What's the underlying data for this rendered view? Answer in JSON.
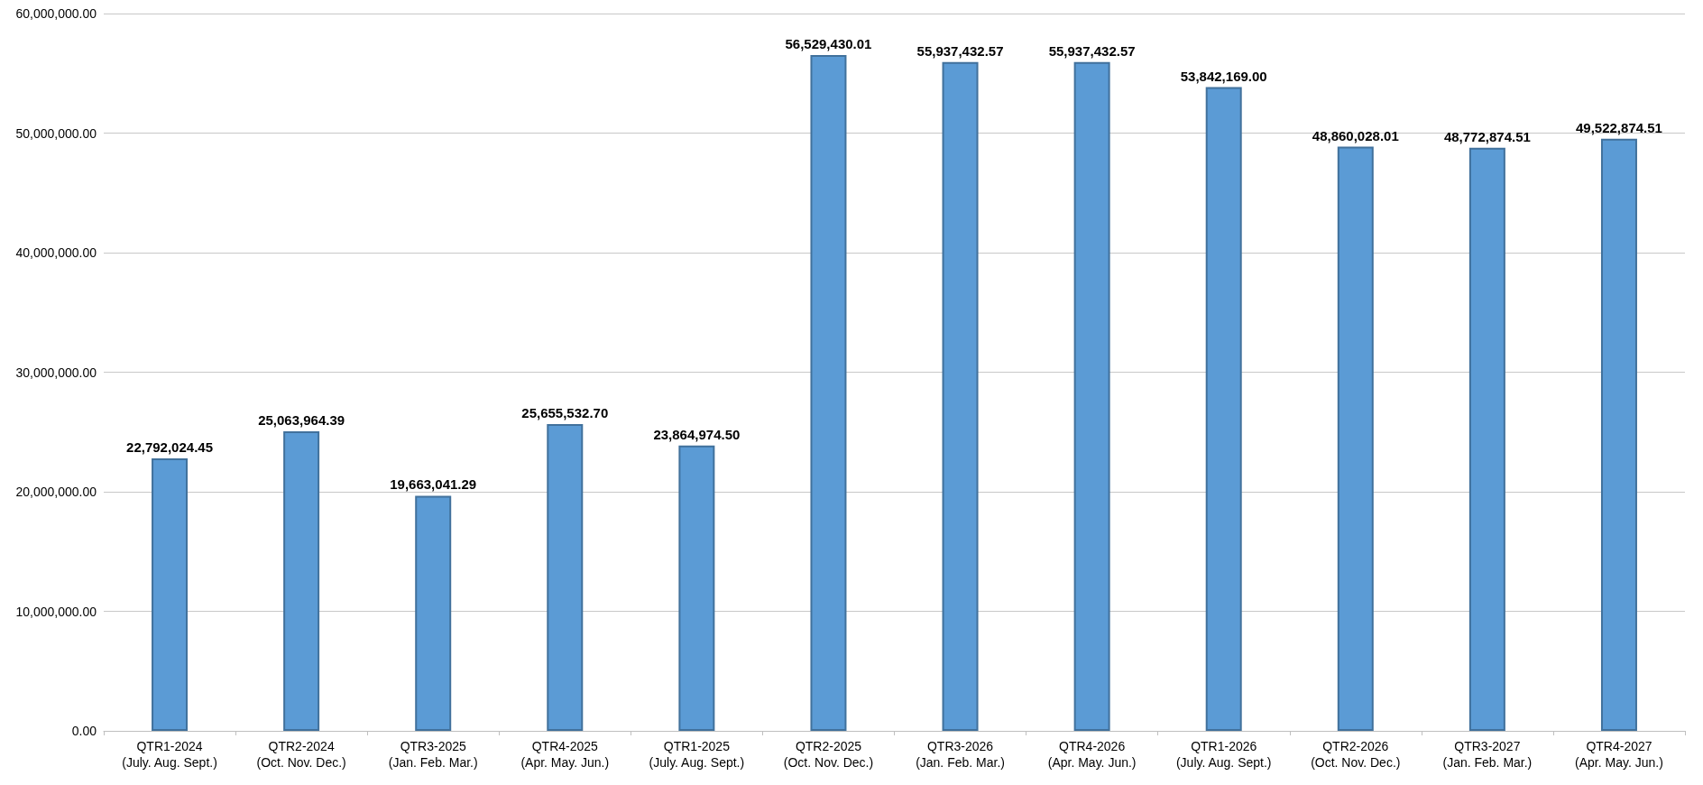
{
  "chart_data": {
    "type": "bar",
    "categories": [
      "QTR1-2024\n(July. Aug. Sept.)",
      "QTR2-2024\n(Oct. Nov. Dec.)",
      "QTR3-2025\n(Jan. Feb. Mar.)",
      "QTR4-2025\n(Apr. May. Jun.)",
      "QTR1-2025\n(July. Aug. Sept.)",
      "QTR2-2025\n(Oct. Nov. Dec.)",
      "QTR3-2026\n(Jan. Feb. Mar.)",
      "QTR4-2026\n(Apr. May. Jun.)",
      "QTR1-2026\n(July. Aug. Sept.)",
      "QTR2-2026\n(Oct. Nov. Dec.)",
      "QTR3-2027\n(Jan. Feb. Mar.)",
      "QTR4-2027\n(Apr. May. Jun.)"
    ],
    "values": [
      22792024.45,
      25063964.39,
      19663041.29,
      25655532.7,
      23864974.5,
      56529430.01,
      55937432.57,
      55937432.57,
      53842169.0,
      48860028.01,
      48772874.51,
      49522874.51
    ],
    "value_labels": [
      "22,792,024.45",
      "25,063,964.39",
      "19,663,041.29",
      "25,655,532.70",
      "23,864,974.50",
      "56,529,430.01",
      "55,937,432.57",
      "55,937,432.57",
      "53,842,169.00",
      "48,860,028.01",
      "48,772,874.51",
      "49,522,874.51"
    ],
    "color": "#5b9bd5",
    "ylim": [
      0,
      60000000
    ],
    "yticks": [
      {
        "value": 0,
        "label": "0.00"
      },
      {
        "value": 10000000,
        "label": "10,000,000.00"
      },
      {
        "value": 20000000,
        "label": "20,000,000.00"
      },
      {
        "value": 30000000,
        "label": "30,000,000.00"
      },
      {
        "value": 40000000,
        "label": "40,000,000.00"
      },
      {
        "value": 50000000,
        "label": "50,000,000.00"
      },
      {
        "value": 60000000,
        "label": "60,000,000.00"
      }
    ],
    "grid": "y"
  }
}
